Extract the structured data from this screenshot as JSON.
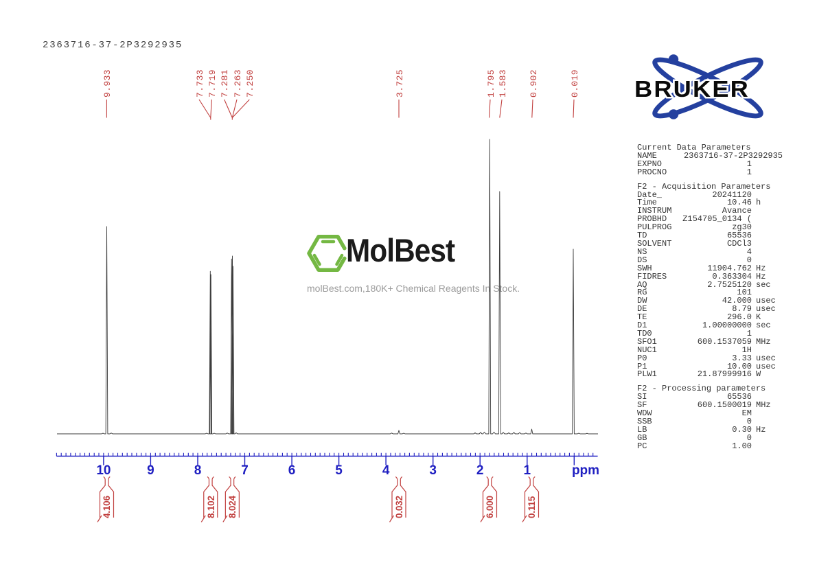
{
  "header": {
    "sample_id": "2363716-37-2P3292935"
  },
  "branding": {
    "bruker_text": "BRUKER",
    "bruker_blue": "#24409f",
    "watermark_name": "MolBest",
    "watermark_tagline": "molBest.com,180K+ Chemical Reagents In Stock.",
    "watermark_green": "#74b843"
  },
  "colors": {
    "annotation_red": "#c1403f",
    "axis_blue": "#1f1fc1",
    "spectrum_line": "#3c3c3c"
  },
  "chart_data": {
    "type": "line",
    "kind": "1H NMR spectrum",
    "x_axis": {
      "label": "ppm",
      "ticks": [
        "10",
        "9",
        "8",
        "7",
        "6",
        "5",
        "4",
        "3",
        "2",
        "1"
      ],
      "unit_label": "ppm",
      "range_ppm": [
        11.0,
        -0.5
      ],
      "minor_tick_step_ppm": 0.1
    },
    "peaks": [
      {
        "ppm": 9.933,
        "rel_intensity": 0.704
      },
      {
        "ppm": 7.733,
        "rel_intensity": 0.552
      },
      {
        "ppm": 7.719,
        "rel_intensity": 0.541
      },
      {
        "ppm": 7.281,
        "rel_intensity": 0.594
      },
      {
        "ppm": 7.263,
        "rel_intensity": 0.604
      },
      {
        "ppm": 7.25,
        "rel_intensity": 0.569
      },
      {
        "ppm": 3.725,
        "rel_intensity": 0.012
      },
      {
        "ppm": 1.795,
        "rel_intensity": 1.0
      },
      {
        "ppm": 1.583,
        "rel_intensity": 0.823
      },
      {
        "ppm": 0.902,
        "rel_intensity": 0.016
      },
      {
        "ppm": 0.019,
        "rel_intensity": 0.627
      }
    ],
    "peak_labels": [
      "9.933",
      "7.733",
      "7.719",
      "7.281",
      "7.263",
      "7.250",
      "3.725",
      "1.795",
      "1.583",
      "0.902",
      "0.019"
    ],
    "integrals": [
      {
        "value": "4.106",
        "ppm": 9.933
      },
      {
        "value": "8.102",
        "ppm": 7.726
      },
      {
        "value": "8.024",
        "ppm": 7.265
      },
      {
        "value": "0.032",
        "ppm": 3.725
      },
      {
        "value": "6.000",
        "ppm": 1.792
      },
      {
        "value": "0.115",
        "ppm": 0.902
      }
    ]
  },
  "parameters_panel": {
    "sections": [
      {
        "title": "Current Data Parameters",
        "rows": [
          {
            "k": "NAME",
            "v": "2363716-37-2P3292935",
            "wide": true
          },
          {
            "k": "EXPNO",
            "v": "1"
          },
          {
            "k": "PROCNO",
            "v": "1"
          }
        ]
      },
      {
        "title": "F2 - Acquisition Parameters",
        "rows": [
          {
            "k": "Date_",
            "v": "20241120"
          },
          {
            "k": "Time",
            "v": "10.46",
            "u": "h"
          },
          {
            "k": "INSTRUM",
            "v": "Avance"
          },
          {
            "k": "PROBHD",
            "v": "Z154705_0134 ("
          },
          {
            "k": "PULPROG",
            "v": "zg30"
          },
          {
            "k": "TD",
            "v": "65536"
          },
          {
            "k": "SOLVENT",
            "v": "CDCl3"
          },
          {
            "k": "NS",
            "v": "4"
          },
          {
            "k": "DS",
            "v": "0"
          },
          {
            "k": "SWH",
            "v": "11904.762",
            "u": "Hz"
          },
          {
            "k": "FIDRES",
            "v": "0.363304",
            "u": "Hz"
          },
          {
            "k": "AQ",
            "v": "2.7525120",
            "u": "sec"
          },
          {
            "k": "RG",
            "v": "101"
          },
          {
            "k": "DW",
            "v": "42.000",
            "u": "usec"
          },
          {
            "k": "DE",
            "v": "8.79",
            "u": "usec"
          },
          {
            "k": "TE",
            "v": "296.0",
            "u": "K"
          },
          {
            "k": "D1",
            "v": "1.00000000",
            "u": "sec"
          },
          {
            "k": "TD0",
            "v": "1"
          },
          {
            "k": "SFO1",
            "v": "600.1537059",
            "u": "MHz"
          },
          {
            "k": "NUC1",
            "v": "1H"
          },
          {
            "k": "P0",
            "v": "3.33",
            "u": "usec"
          },
          {
            "k": "P1",
            "v": "10.00",
            "u": "usec"
          },
          {
            "k": "PLW1",
            "v": "21.87999916",
            "u": "W"
          }
        ]
      },
      {
        "title": "F2 - Processing parameters",
        "rows": [
          {
            "k": "SI",
            "v": "65536"
          },
          {
            "k": "SF",
            "v": "600.1500019",
            "u": "MHz"
          },
          {
            "k": "WDW",
            "v": "EM"
          },
          {
            "k": "SSB",
            "v": "0"
          },
          {
            "k": "LB",
            "v": "0.30",
            "u": "Hz"
          },
          {
            "k": "GB",
            "v": "0"
          },
          {
            "k": "PC",
            "v": "1.00"
          }
        ]
      }
    ]
  }
}
